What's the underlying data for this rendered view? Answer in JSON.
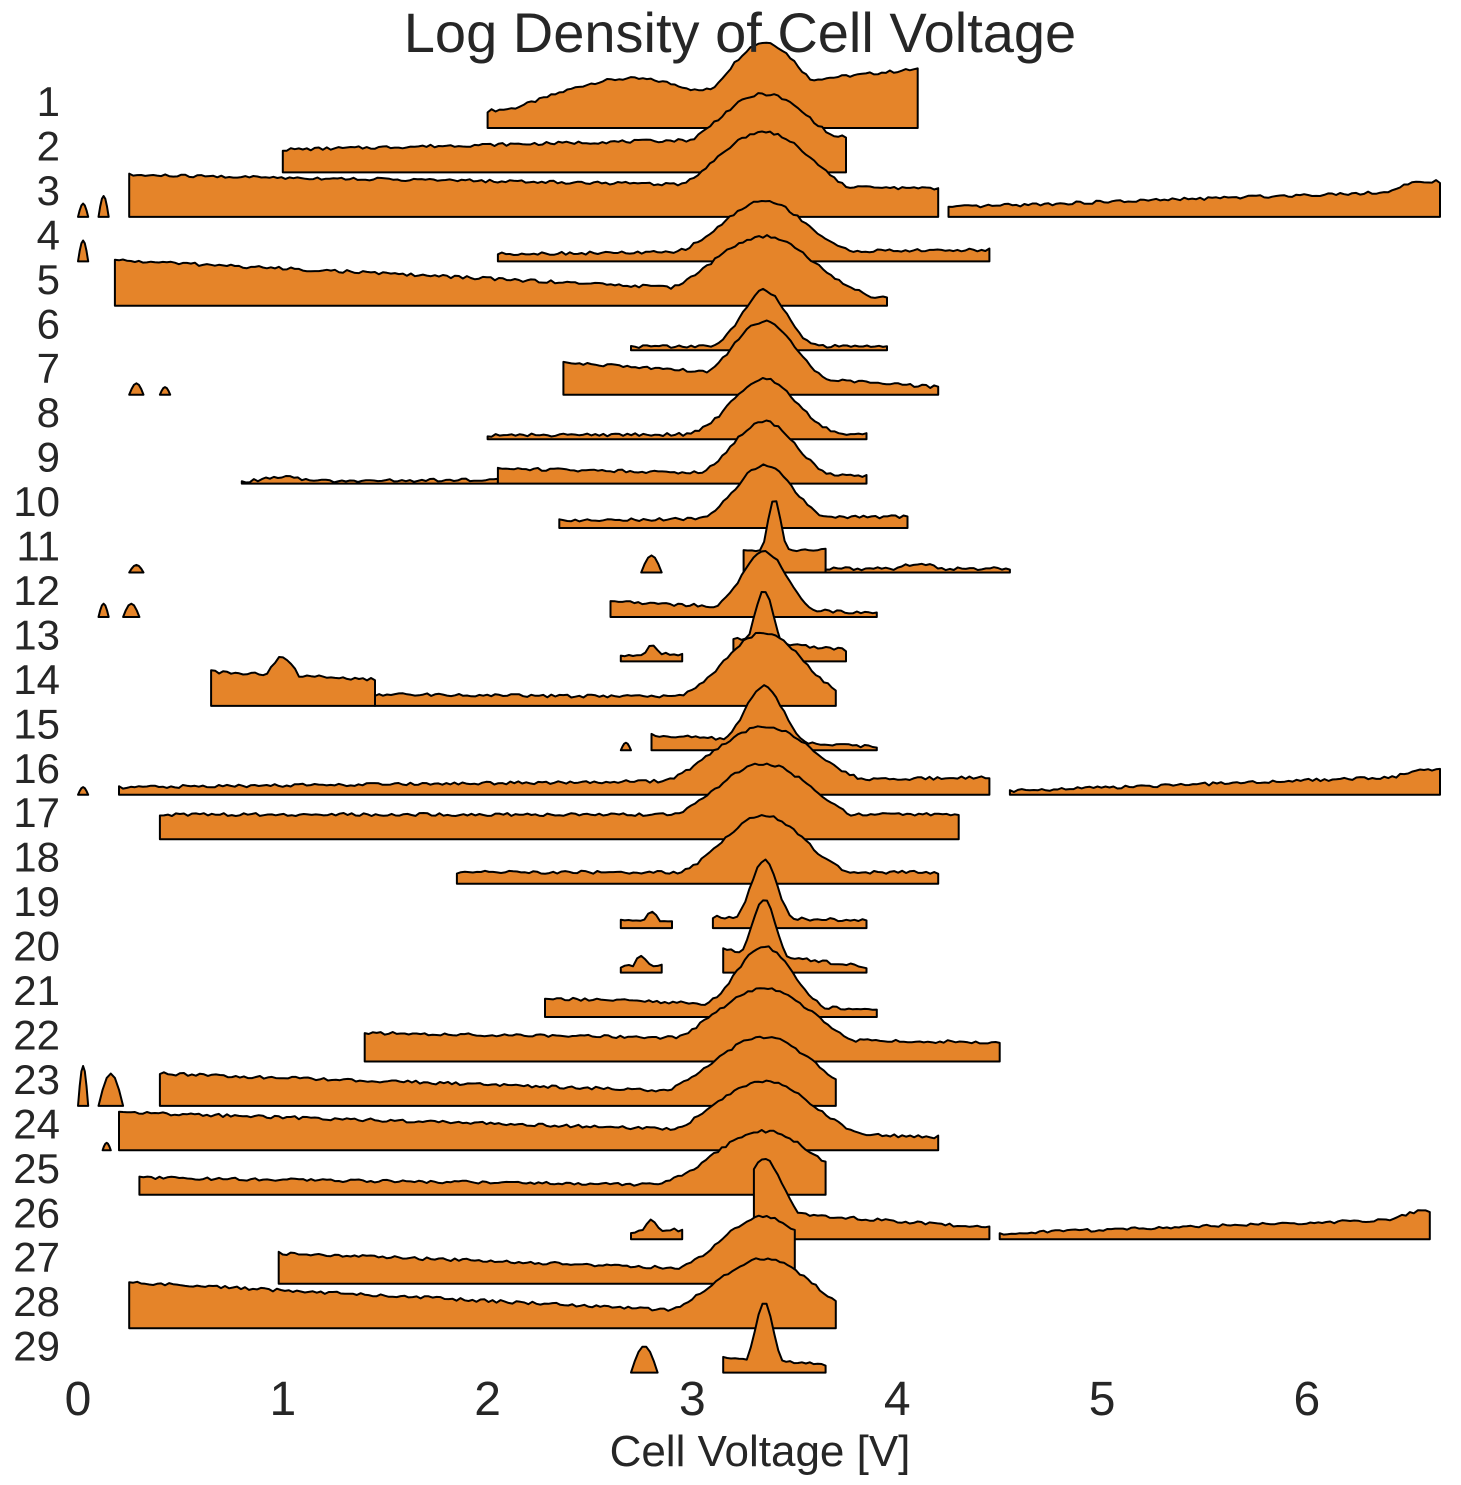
{
  "chart_data": {
    "type": "ridgeline",
    "title": "Log Density of Cell Voltage",
    "xlabel": "Cell Voltage [V]",
    "ylabel": "",
    "xlim": [
      0,
      6.65
    ],
    "xticks": [
      0,
      1,
      2,
      3,
      4,
      5,
      6
    ],
    "grid": false,
    "fill_color": "#E58429",
    "line_color": "#000000",
    "series": [
      {
        "name": "1",
        "segments": [
          {
            "x": [
              2.0,
              4.1
            ],
            "y": [
              0.45,
              1.55
            ],
            "peak": [
              3.35,
              1.85
            ],
            "peak2": [
              2.7,
              1.3
            ]
          }
        ]
      },
      {
        "name": "2",
        "segments": [
          {
            "x": [
              1.0,
              3.75
            ],
            "y": [
              0.6,
              0.95
            ],
            "peak": [
              3.35,
              1.75
            ]
          }
        ]
      },
      {
        "name": "3",
        "segments": [
          {
            "x": [
              0.0,
              0.05
            ],
            "y": [
              0.0,
              0.35
            ],
            "peak": [
              0.02,
              0.35
            ]
          },
          {
            "x": [
              0.1,
              0.15
            ],
            "y": [
              0.0,
              0.5
            ],
            "peak": [
              0.13,
              0.55
            ]
          },
          {
            "x": [
              0.25,
              4.2
            ],
            "y": [
              1.1,
              0.75
            ],
            "peak": [
              3.35,
              1.95
            ]
          },
          {
            "x": [
              4.25,
              6.65
            ],
            "y": [
              0.25,
              0.7
            ],
            "peak": [
              6.6,
              0.7
            ]
          }
        ]
      },
      {
        "name": "4",
        "segments": [
          {
            "x": [
              0.0,
              0.05
            ],
            "y": [
              0.0,
              0.5
            ],
            "peak": [
              0.02,
              0.55
            ]
          },
          {
            "x": [
              2.05,
              4.45
            ],
            "y": [
              0.2,
              0.3
            ],
            "peak": [
              3.35,
              1.5
            ]
          }
        ]
      },
      {
        "name": "5",
        "segments": [
          {
            "x": [
              0.18,
              3.95
            ],
            "y": [
              1.2,
              0.2
            ],
            "peak": [
              3.35,
              1.7
            ]
          }
        ]
      },
      {
        "name": "6",
        "segments": [
          {
            "x": [
              2.7,
              3.95
            ],
            "y": [
              0.1,
              0.1
            ],
            "peak": [
              3.35,
              1.55
            ]
          }
        ]
      },
      {
        "name": "7",
        "segments": [
          {
            "x": [
              0.25,
              0.32
            ],
            "y": [
              0.0,
              0.25
            ],
            "peak": [
              0.28,
              0.3
            ]
          },
          {
            "x": [
              0.4,
              0.45
            ],
            "y": [
              0.0,
              0.2
            ],
            "peak": [
              0.42,
              0.2
            ]
          },
          {
            "x": [
              2.37,
              4.2
            ],
            "y": [
              0.85,
              0.2
            ],
            "peak": [
              3.35,
              1.75
            ]
          }
        ]
      },
      {
        "name": "8",
        "segments": [
          {
            "x": [
              2.0,
              3.85
            ],
            "y": [
              0.1,
              0.15
            ],
            "peak": [
              3.35,
              1.55
            ]
          }
        ]
      },
      {
        "name": "9",
        "segments": [
          {
            "x": [
              0.8,
              2.05
            ],
            "y": [
              0.05,
              0.1
            ],
            "peak": [
              1.0,
              0.15
            ]
          },
          {
            "x": [
              2.05,
              3.85
            ],
            "y": [
              0.4,
              0.2
            ],
            "peak": [
              3.35,
              1.55
            ]
          }
        ]
      },
      {
        "name": "10",
        "segments": [
          {
            "x": [
              2.35,
              4.05
            ],
            "y": [
              0.2,
              0.3
            ],
            "peak": [
              3.35,
              1.55
            ]
          }
        ]
      },
      {
        "name": "11",
        "segments": [
          {
            "x": [
              0.25,
              0.32
            ],
            "y": [
              0.0,
              0.2
            ],
            "peak": [
              0.28,
              0.2
            ]
          },
          {
            "x": [
              2.75,
              2.85
            ],
            "y": [
              0.2,
              0.4
            ],
            "peak": [
              2.8,
              0.45
            ]
          },
          {
            "x": [
              3.25,
              3.65
            ],
            "y": [
              0.6,
              0.6
            ],
            "peak": [
              3.4,
              1.75
            ]
          },
          {
            "x": [
              3.65,
              4.55
            ],
            "y": [
              0.1,
              0.1
            ],
            "peak": [
              4.1,
              0.2
            ]
          }
        ]
      },
      {
        "name": "12",
        "segments": [
          {
            "x": [
              0.1,
              0.15
            ],
            "y": [
              0.0,
              0.35
            ],
            "peak": [
              0.13,
              0.35
            ]
          },
          {
            "x": [
              0.22,
              0.3
            ],
            "y": [
              0.0,
              0.35
            ],
            "peak": [
              0.26,
              0.35
            ]
          },
          {
            "x": [
              2.6,
              3.9
            ],
            "y": [
              0.4,
              0.1
            ],
            "peak": [
              3.35,
              1.65
            ]
          }
        ]
      },
      {
        "name": "13",
        "segments": [
          {
            "x": [
              2.65,
              2.95
            ],
            "y": [
              0.15,
              0.2
            ],
            "peak": [
              2.8,
              0.35
            ]
          },
          {
            "x": [
              3.2,
              3.75
            ],
            "y": [
              0.6,
              0.3
            ],
            "peak": [
              3.35,
              1.7
            ]
          }
        ]
      },
      {
        "name": "14",
        "segments": [
          {
            "x": [
              0.65,
              1.45
            ],
            "y": [
              0.9,
              0.7
            ],
            "peak": [
              1.0,
              1.0
            ]
          },
          {
            "x": [
              1.45,
              3.7
            ],
            "y": [
              0.3,
              0.2
            ],
            "peak": [
              3.35,
              1.85
            ]
          }
        ]
      },
      {
        "name": "15",
        "segments": [
          {
            "x": [
              2.65,
              2.7
            ],
            "y": [
              0.0,
              0.2
            ],
            "peak": [
              2.67,
              0.2
            ]
          },
          {
            "x": [
              2.8,
              3.9
            ],
            "y": [
              0.4,
              0.1
            ],
            "peak": [
              3.35,
              1.6
            ]
          }
        ]
      },
      {
        "name": "16",
        "segments": [
          {
            "x": [
              0.0,
              0.05
            ],
            "y": [
              0.0,
              0.2
            ],
            "peak": [
              0.02,
              0.2
            ]
          },
          {
            "x": [
              0.2,
              4.45
            ],
            "y": [
              0.2,
              0.45
            ],
            "peak": [
              3.35,
              1.65
            ]
          },
          {
            "x": [
              4.55,
              6.65
            ],
            "y": [
              0.1,
              0.5
            ],
            "peak": [
              6.6,
              0.5
            ]
          }
        ]
      },
      {
        "name": "17",
        "segments": [
          {
            "x": [
              0.4,
              4.3
            ],
            "y": [
              0.65,
              0.65
            ],
            "peak": [
              3.35,
              1.75
            ]
          }
        ]
      },
      {
        "name": "18",
        "segments": [
          {
            "x": [
              1.85,
              4.2
            ],
            "y": [
              0.3,
              0.3
            ],
            "peak": [
              3.35,
              1.7
            ]
          }
        ]
      },
      {
        "name": "19",
        "segments": [
          {
            "x": [
              2.65,
              2.9
            ],
            "y": [
              0.2,
              0.2
            ],
            "peak": [
              2.8,
              0.35
            ]
          },
          {
            "x": [
              3.1,
              3.85
            ],
            "y": [
              0.3,
              0.2
            ],
            "peak": [
              3.35,
              1.7
            ]
          }
        ]
      },
      {
        "name": "20",
        "segments": [
          {
            "x": [
              2.65,
              2.85
            ],
            "y": [
              0.15,
              0.2
            ],
            "peak": [
              2.75,
              0.35
            ]
          },
          {
            "x": [
              3.15,
              3.85
            ],
            "y": [
              0.6,
              0.15
            ],
            "peak": [
              3.35,
              1.75
            ]
          }
        ]
      },
      {
        "name": "21",
        "segments": [
          {
            "x": [
              2.28,
              3.9
            ],
            "y": [
              0.5,
              0.2
            ],
            "peak": [
              3.35,
              1.75
            ]
          }
        ]
      },
      {
        "name": "22",
        "segments": [
          {
            "x": [
              1.4,
              4.5
            ],
            "y": [
              0.75,
              0.5
            ],
            "peak": [
              3.35,
              1.7
            ]
          }
        ]
      },
      {
        "name": "23",
        "segments": [
          {
            "x": [
              0.0,
              0.05
            ],
            "y": [
              0.0,
              1.0
            ],
            "peak": [
              0.02,
              1.05
            ]
          },
          {
            "x": [
              0.1,
              0.22
            ],
            "y": [
              0.0,
              0.85
            ],
            "peak": [
              0.15,
              0.85
            ]
          },
          {
            "x": [
              0.4,
              3.7
            ],
            "y": [
              0.85,
              0.25
            ],
            "peak": [
              3.35,
              1.7
            ]
          }
        ]
      },
      {
        "name": "24",
        "segments": [
          {
            "x": [
              0.12,
              0.16
            ],
            "y": [
              0.0,
              0.2
            ],
            "peak": [
              0.14,
              0.2
            ]
          },
          {
            "x": [
              0.2,
              4.2
            ],
            "y": [
              1.0,
              0.35
            ],
            "peak": [
              3.35,
              1.65
            ]
          }
        ]
      },
      {
        "name": "25",
        "segments": [
          {
            "x": [
              0.3,
              3.65
            ],
            "y": [
              0.45,
              0.2
            ],
            "peak": [
              3.35,
              1.6
            ]
          }
        ]
      },
      {
        "name": "26",
        "segments": [
          {
            "x": [
              2.7,
              2.95
            ],
            "y": [
              0.2,
              0.25
            ],
            "peak": [
              2.8,
              0.45
            ]
          },
          {
            "x": [
              3.3,
              4.45
            ],
            "y": [
              0.75,
              0.3
            ],
            "peak": [
              3.35,
              1.85
            ]
          },
          {
            "x": [
              4.5,
              6.6
            ],
            "y": [
              0.15,
              0.55
            ],
            "peak": [
              6.58,
              0.55
            ]
          }
        ]
      },
      {
        "name": "27",
        "segments": [
          {
            "x": [
              0.98,
              3.5
            ],
            "y": [
              0.8,
              0.3
            ],
            "peak": [
              3.35,
              1.65
            ]
          }
        ]
      },
      {
        "name": "28",
        "segments": [
          {
            "x": [
              0.25,
              3.7
            ],
            "y": [
              1.2,
              0.25
            ],
            "peak": [
              3.35,
              1.7
            ]
          }
        ]
      },
      {
        "name": "29",
        "segments": [
          {
            "x": [
              2.7,
              2.83
            ],
            "y": [
              0.2,
              0.4
            ],
            "peak": [
              2.75,
              0.7
            ]
          },
          {
            "x": [
              3.15,
              3.65
            ],
            "y": [
              0.4,
              0.2
            ],
            "peak": [
              3.35,
              1.75
            ]
          }
        ]
      }
    ]
  }
}
